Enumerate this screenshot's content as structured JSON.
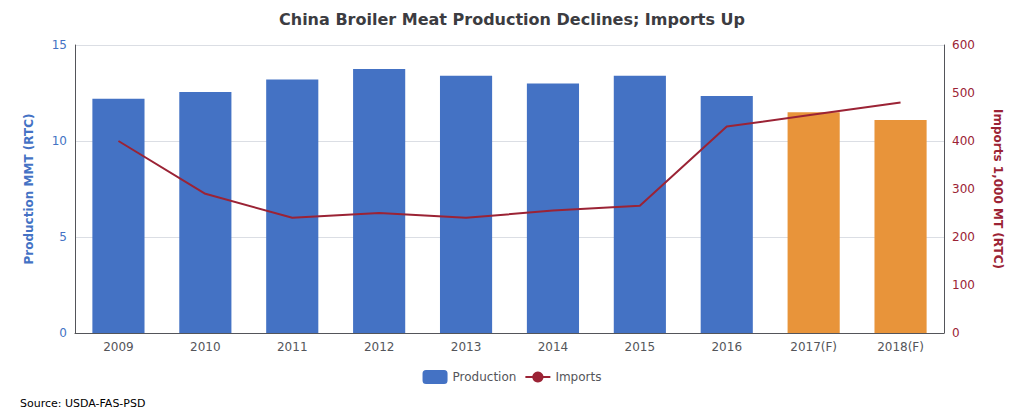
{
  "chart_data": {
    "type": "bar",
    "title": "China Broiler Meat Production Declines; Imports Up",
    "categories": [
      "2009",
      "2010",
      "2011",
      "2012",
      "2013",
      "2014",
      "2015",
      "2016",
      "2017(F)",
      "2018(F)"
    ],
    "series": [
      {
        "name": "Production",
        "type": "bar",
        "color": "#4472C4",
        "colors": [
          "#4472C4",
          "#4472C4",
          "#4472C4",
          "#4472C4",
          "#4472C4",
          "#4472C4",
          "#4472C4",
          "#4472C4",
          "#E8943A",
          "#E8943A"
        ],
        "values": [
          12.2,
          12.55,
          13.2,
          13.75,
          13.4,
          13.0,
          13.4,
          12.35,
          11.5,
          11.1
        ]
      },
      {
        "name": "Imports",
        "type": "line",
        "color": "#9B2335",
        "axis": "y2",
        "values": [
          400,
          290,
          240,
          250,
          240,
          255,
          265,
          430,
          455,
          480
        ]
      }
    ],
    "ylabel": "Production MMT (RTC)",
    "y2label": "Imports 1,000 MT (RTC)",
    "ylim": [
      0,
      15
    ],
    "yticks": [
      0,
      5,
      10,
      15
    ],
    "y2lim": [
      0,
      600
    ],
    "y2ticks": [
      0,
      100,
      200,
      300,
      400,
      500,
      600
    ],
    "grid": true,
    "legend": "bottom",
    "annotations": [
      "Source: USDA-FAS-PSD"
    ]
  }
}
